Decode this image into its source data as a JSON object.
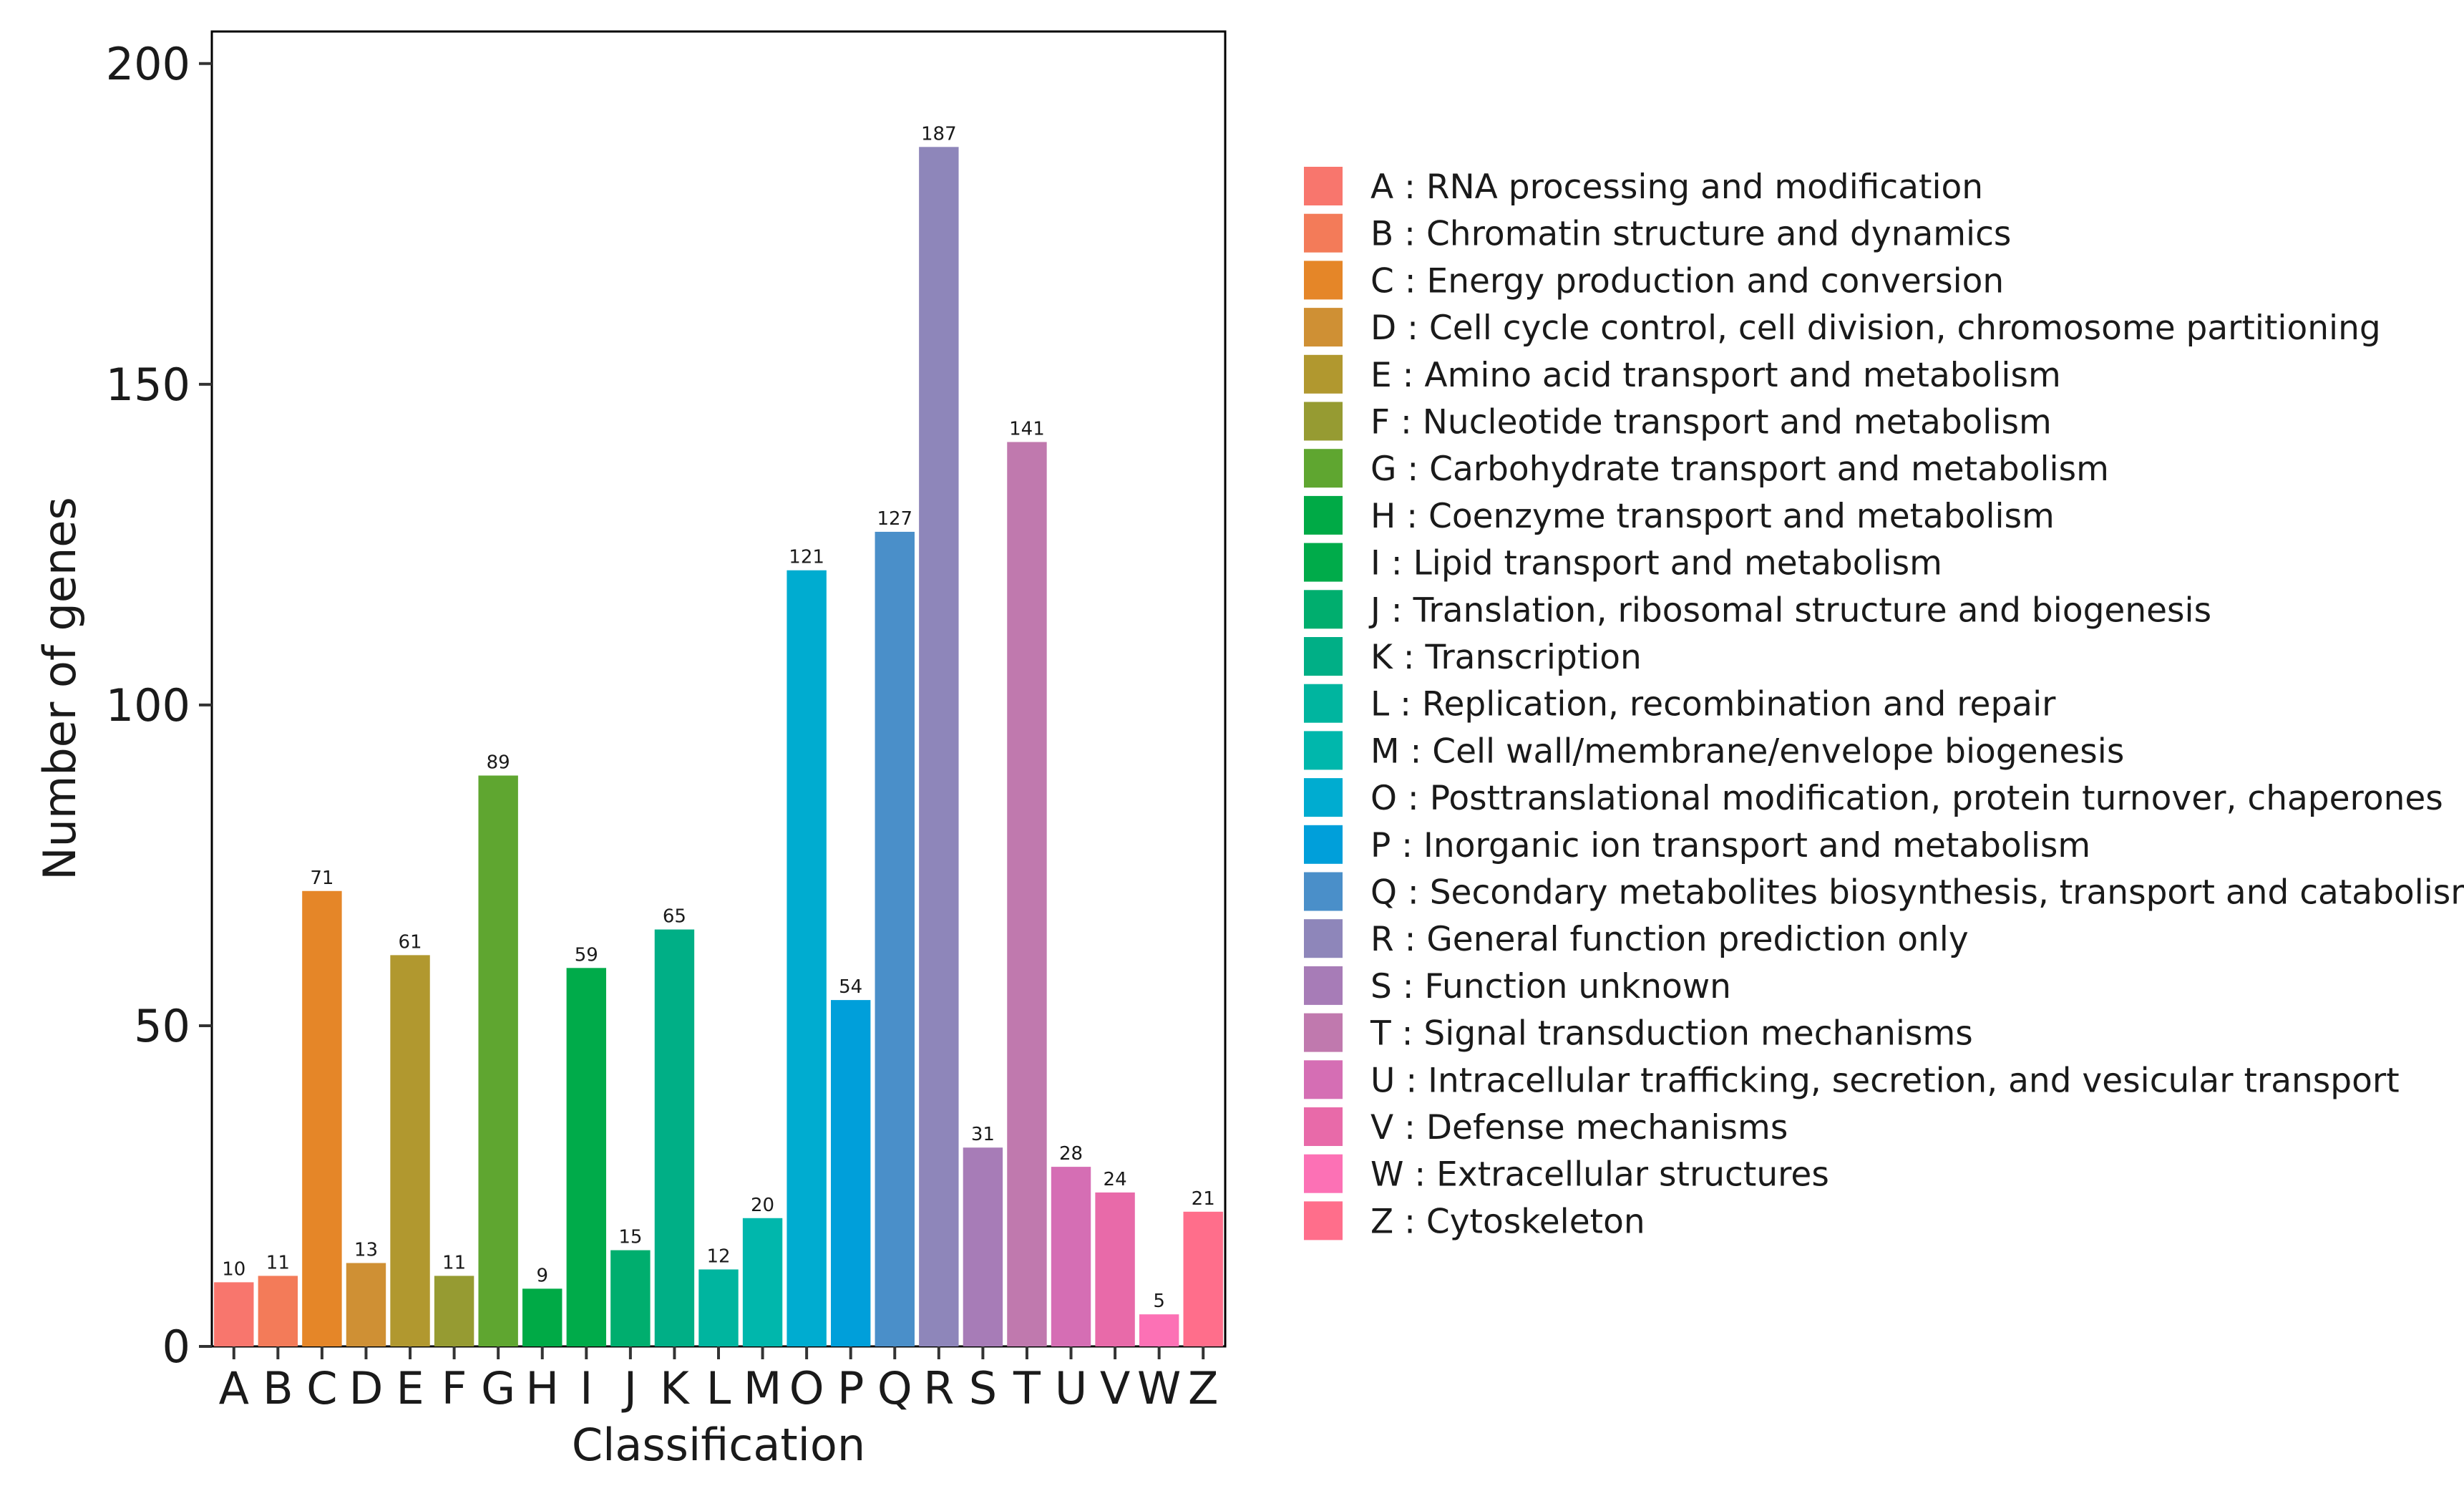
{
  "chart_data": {
    "type": "bar",
    "title": "",
    "xlabel": "Classification",
    "ylabel": "Number of genes",
    "ylim": [
      0,
      205
    ],
    "yticks": [
      0,
      50,
      100,
      150,
      200
    ],
    "grid": false,
    "legend_position": "right",
    "categories": [
      "A",
      "B",
      "C",
      "D",
      "E",
      "F",
      "G",
      "H",
      "I",
      "J",
      "K",
      "L",
      "M",
      "O",
      "P",
      "Q",
      "R",
      "S",
      "T",
      "U",
      "V",
      "W",
      "Z"
    ],
    "values": [
      10,
      11,
      71,
      13,
      61,
      11,
      89,
      9,
      59,
      15,
      65,
      12,
      20,
      121,
      54,
      127,
      187,
      31,
      141,
      28,
      24,
      5,
      21
    ],
    "colors": [
      "#F8766D",
      "#F37B59",
      "#E58628",
      "#CF9034",
      "#B1982F",
      "#969B32",
      "#5FA630",
      "#00AA46",
      "#00AB4A",
      "#00AE6E",
      "#00AF86",
      "#00B59F",
      "#00B7AC",
      "#00ACD0",
      "#009FDA",
      "#4A8FC9",
      "#8E86BA",
      "#A77CB7",
      "#C079AE",
      "#D56EB4",
      "#E86AA9",
      "#FC71B5",
      "#FF6E8B"
    ],
    "legend": [
      "A : RNA processing and modification",
      "B : Chromatin structure and dynamics",
      "C : Energy production and conversion",
      "D : Cell cycle control, cell division, chromosome partitioning",
      "E : Amino acid transport and metabolism",
      "F : Nucleotide transport and metabolism",
      "G : Carbohydrate transport and metabolism",
      "H : Coenzyme transport and metabolism",
      "I : Lipid transport and metabolism",
      "J : Translation, ribosomal structure and biogenesis",
      "K : Transcription",
      "L : Replication, recombination and repair",
      "M : Cell wall/membrane/envelope biogenesis",
      "O : Posttranslational modification, protein turnover, chaperones",
      "P : Inorganic ion transport and metabolism",
      "Q : Secondary metabolites biosynthesis, transport and catabolism",
      "R : General function prediction only",
      "S : Function unknown",
      "T : Signal transduction mechanisms",
      "U : Intracellular trafficking, secretion, and vesicular transport",
      "V : Defense mechanisms",
      "W : Extracellular structures",
      "Z : Cytoskeleton"
    ]
  }
}
